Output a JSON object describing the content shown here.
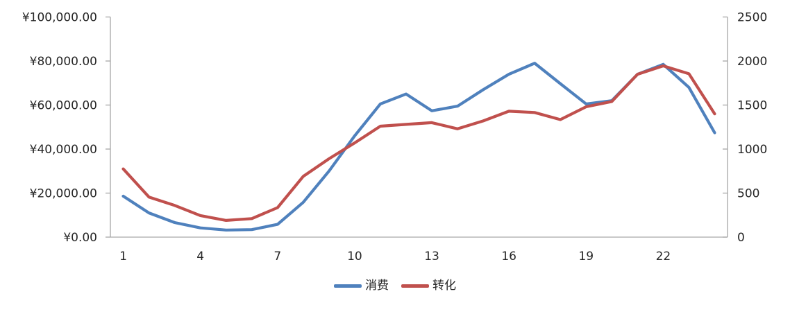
{
  "chart_data": {
    "type": "line",
    "title": "",
    "x": [
      1,
      2,
      3,
      4,
      5,
      6,
      7,
      8,
      9,
      10,
      11,
      12,
      13,
      14,
      15,
      16,
      17,
      18,
      19,
      20,
      21,
      22,
      23,
      24
    ],
    "x_tick_labels": [
      "1",
      "4",
      "7",
      "10",
      "13",
      "16",
      "19",
      "22"
    ],
    "x_tick_values": [
      1,
      4,
      7,
      10,
      13,
      16,
      19,
      22
    ],
    "series": [
      {
        "name": "消费",
        "axis": "left",
        "color": "#4F81BD",
        "values": [
          18600,
          11000,
          6600,
          4200,
          3200,
          3400,
          5800,
          15800,
          30000,
          46000,
          60500,
          65000,
          57400,
          59500,
          67000,
          74000,
          79000,
          69700,
          60500,
          62000,
          74000,
          78500,
          68000,
          47400
        ]
      },
      {
        "name": "转化",
        "axis": "right",
        "color": "#C0504D",
        "values": [
          775,
          455,
          360,
          245,
          190,
          210,
          335,
          690,
          890,
          1070,
          1260,
          1280,
          1300,
          1230,
          1320,
          1430,
          1415,
          1335,
          1480,
          1540,
          1850,
          1945,
          1855,
          1400
        ]
      }
    ],
    "left_axis": {
      "min": 0,
      "max": 100000,
      "tick_step": 20000,
      "tick_labels": [
        "¥0.00",
        "¥20,000.00",
        "¥40,000.00",
        "¥60,000.00",
        "¥80,000.00",
        "¥100,000.00"
      ]
    },
    "right_axis": {
      "min": 0,
      "max": 2500,
      "tick_step": 500,
      "tick_labels": [
        "0",
        "500",
        "1000",
        "1500",
        "2000",
        "2500"
      ]
    },
    "grid": false,
    "legend_position": "bottom"
  },
  "legend": {
    "items": [
      {
        "label": "消费",
        "color": "#4F81BD"
      },
      {
        "label": "转化",
        "color": "#C0504D"
      }
    ]
  },
  "colors": {
    "series_blue": "#4F81BD",
    "series_red": "#C0504D",
    "axis_line": "#A6A6A6",
    "tick_text": "#262626",
    "background": "#FFFFFF"
  }
}
